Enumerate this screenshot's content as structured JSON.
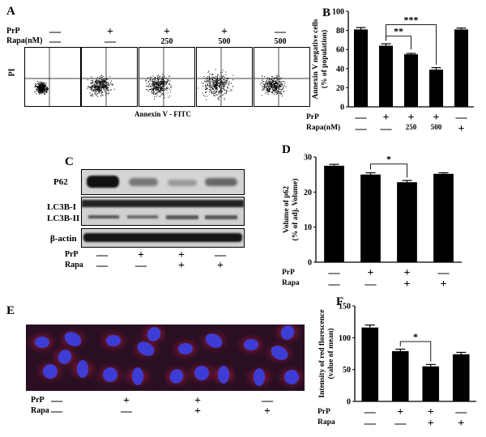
{
  "panels": {
    "A": {
      "letter": "A",
      "conditions": {
        "prp_label": "PrP",
        "rapa_label": "Rapa(nM)",
        "prp": [
          "—",
          "+",
          "+",
          "+",
          "—"
        ],
        "rapa": [
          "—",
          "—",
          "250",
          "500",
          "500"
        ]
      },
      "y_axis_label": "PI",
      "x_axis_label": "Annexin V - FITC"
    },
    "C": {
      "letter": "C",
      "bands": [
        "P62",
        "LC3B-I",
        "LC3B-II",
        "β-actin"
      ],
      "conditions": {
        "prp_label": "PrP",
        "rapa_label": "Rapa",
        "prp": [
          "—",
          "+",
          "+",
          "—"
        ],
        "rapa": [
          "—",
          "—",
          "+",
          "+"
        ]
      }
    },
    "E": {
      "letter": "E",
      "conditions": {
        "prp_label": "PrP",
        "rapa_label": "Rapa",
        "prp": [
          "—",
          "+",
          "+",
          "—"
        ],
        "rapa": [
          "—",
          "—",
          "+",
          "+"
        ]
      }
    }
  },
  "chart_data": [
    {
      "letter": "B",
      "type": "bar",
      "ylabel": "Annexin V negative cells\n(% of population)",
      "ylim": [
        0,
        100
      ],
      "yticks": [
        0,
        20,
        40,
        60,
        80,
        100
      ],
      "values": [
        81,
        64,
        55,
        39,
        81
      ],
      "errors": [
        2,
        2,
        1,
        2,
        1.5
      ],
      "significance": [
        {
          "from": 1,
          "to": 2,
          "label": "**"
        },
        {
          "from": 1,
          "to": 3,
          "label": "***"
        }
      ],
      "conditions": {
        "prp_label": "PrP",
        "rapa_label": "Rapa(nM)",
        "prp": [
          "—",
          "+",
          "+",
          "+",
          "—"
        ],
        "rapa": [
          "—",
          "—",
          "250",
          "500",
          "+"
        ]
      }
    },
    {
      "letter": "D",
      "type": "bar",
      "ylabel": "Volume of p62\n(% of adj. Volume)",
      "ylim": [
        0,
        30
      ],
      "yticks": [
        0,
        10,
        20,
        30
      ],
      "values": [
        27.5,
        25,
        22.8,
        25.2
      ],
      "errors": [
        0.4,
        0.5,
        0.5,
        0.3
      ],
      "significance": [
        {
          "from": 1,
          "to": 2,
          "label": "*"
        }
      ],
      "conditions": {
        "prp_label": "PrP",
        "rapa_label": "Rapa",
        "prp": [
          "—",
          "+",
          "+",
          "—"
        ],
        "rapa": [
          "—",
          "—",
          "+",
          "+"
        ]
      }
    },
    {
      "letter": "F",
      "type": "bar",
      "ylabel": "Intensity of red florescence\n(value of mean)",
      "ylim": [
        0,
        150
      ],
      "yticks": [
        0,
        50,
        100,
        150
      ],
      "values": [
        116,
        79,
        55,
        74
      ],
      "errors": [
        4,
        3,
        3,
        3
      ],
      "significance": [
        {
          "from": 1,
          "to": 2,
          "label": "*"
        }
      ],
      "conditions": {
        "prp_label": "PrP",
        "rapa_label": "Rapa",
        "prp": [
          "—",
          "+",
          "+",
          "—"
        ],
        "rapa": [
          "—",
          "—",
          "+",
          "+"
        ]
      }
    }
  ]
}
